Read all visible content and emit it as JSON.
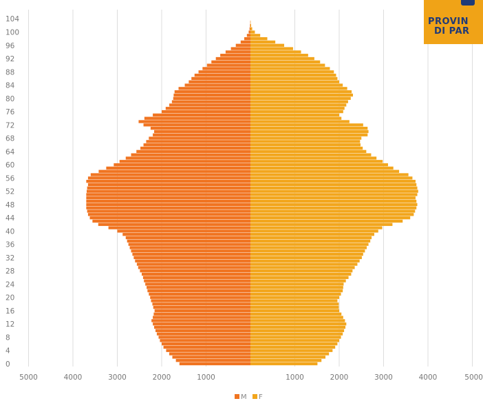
{
  "logo": {
    "line1": "PROVIN",
    "line2": "DI PAR"
  },
  "chart_data": {
    "type": "bar",
    "orientation": "horizontal",
    "subtype": "population-pyramid",
    "title": "",
    "xlabel": "",
    "ylabel": "",
    "y_ticks": [
      0,
      4,
      8,
      12,
      16,
      20,
      24,
      28,
      32,
      36,
      40,
      44,
      48,
      52,
      56,
      60,
      64,
      68,
      72,
      76,
      80,
      84,
      88,
      92,
      96,
      100,
      104
    ],
    "x_ticks_left": [
      "5000",
      "4000",
      "3000",
      "2000",
      "1000"
    ],
    "x_ticks_right": [
      "1000",
      "2000",
      "3000",
      "4000",
      "5000"
    ],
    "x_range": [
      0,
      5000
    ],
    "y_range": [
      0,
      104
    ],
    "ages": [
      0,
      1,
      2,
      3,
      4,
      5,
      6,
      7,
      8,
      9,
      10,
      11,
      12,
      13,
      14,
      15,
      16,
      17,
      18,
      19,
      20,
      21,
      22,
      23,
      24,
      25,
      26,
      27,
      28,
      29,
      30,
      31,
      32,
      33,
      34,
      35,
      36,
      37,
      38,
      39,
      40,
      41,
      42,
      43,
      44,
      45,
      46,
      47,
      48,
      49,
      50,
      51,
      52,
      53,
      54,
      55,
      56,
      57,
      58,
      59,
      60,
      61,
      62,
      63,
      64,
      65,
      66,
      67,
      68,
      69,
      70,
      71,
      72,
      73,
      74,
      75,
      76,
      77,
      78,
      79,
      80,
      81,
      82,
      83,
      84,
      85,
      86,
      87,
      88,
      89,
      90,
      91,
      92,
      93,
      94,
      95,
      96,
      97,
      98,
      99,
      100,
      101,
      102,
      103
    ],
    "series": [
      {
        "name": "M",
        "color": "#f07421",
        "values": [
          1600,
          1680,
          1760,
          1830,
          1900,
          1960,
          2000,
          2040,
          2070,
          2110,
          2140,
          2170,
          2200,
          2230,
          2200,
          2180,
          2160,
          2190,
          2210,
          2240,
          2260,
          2290,
          2320,
          2340,
          2370,
          2400,
          2420,
          2450,
          2490,
          2530,
          2560,
          2600,
          2630,
          2660,
          2690,
          2720,
          2750,
          2780,
          2810,
          2880,
          3000,
          3200,
          3430,
          3560,
          3620,
          3660,
          3680,
          3700,
          3700,
          3700,
          3700,
          3700,
          3690,
          3680,
          3660,
          3700,
          3660,
          3600,
          3420,
          3250,
          3080,
          2950,
          2810,
          2690,
          2570,
          2480,
          2410,
          2350,
          2290,
          2200,
          2170,
          2250,
          2410,
          2520,
          2390,
          2200,
          2000,
          1910,
          1830,
          1770,
          1740,
          1730,
          1710,
          1620,
          1480,
          1390,
          1330,
          1260,
          1170,
          1080,
          980,
          880,
          780,
          680,
          560,
          440,
          330,
          220,
          140,
          80,
          40,
          20,
          10,
          5
        ]
      },
      {
        "name": "F",
        "color": "#f2a61d",
        "values": [
          1510,
          1600,
          1690,
          1770,
          1850,
          1910,
          1960,
          2000,
          2040,
          2080,
          2110,
          2140,
          2160,
          2130,
          2090,
          2050,
          2000,
          1990,
          1990,
          1960,
          2000,
          2040,
          2080,
          2090,
          2100,
          2150,
          2210,
          2270,
          2300,
          2350,
          2410,
          2460,
          2510,
          2540,
          2580,
          2620,
          2660,
          2700,
          2730,
          2790,
          2880,
          2970,
          3200,
          3430,
          3600,
          3680,
          3710,
          3740,
          3760,
          3740,
          3720,
          3760,
          3780,
          3760,
          3740,
          3720,
          3650,
          3560,
          3350,
          3220,
          3100,
          2980,
          2840,
          2720,
          2610,
          2530,
          2480,
          2470,
          2500,
          2640,
          2660,
          2640,
          2540,
          2230,
          2050,
          2000,
          2090,
          2120,
          2160,
          2200,
          2260,
          2310,
          2280,
          2180,
          2080,
          2000,
          1960,
          1930,
          1880,
          1790,
          1680,
          1570,
          1440,
          1300,
          1140,
          960,
          760,
          560,
          380,
          220,
          100,
          40,
          15,
          5
        ]
      }
    ],
    "legend": {
      "position": "bottom-center",
      "entries": [
        "M",
        "F"
      ]
    },
    "grid": {
      "vertical": true,
      "horizontal": false,
      "color": "#dddddd"
    }
  }
}
